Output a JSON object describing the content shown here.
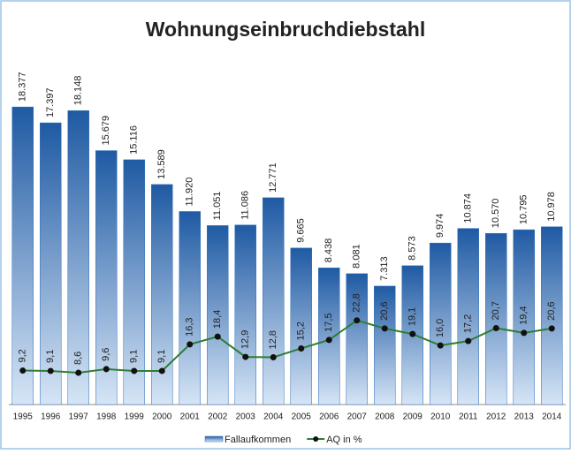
{
  "chart_data": {
    "type": "bar",
    "title": "Wohnungseinbruchdiebstahl",
    "categories": [
      "1995",
      "1996",
      "1997",
      "1998",
      "1999",
      "2000",
      "2001",
      "2002",
      "2003",
      "2004",
      "2005",
      "2006",
      "2007",
      "2008",
      "2009",
      "2010",
      "2011",
      "2012",
      "2013",
      "2014"
    ],
    "series": [
      {
        "name": "Fallaufkommen",
        "type": "bar",
        "color": "#2f6fb8",
        "values": [
          18377,
          17397,
          18148,
          15679,
          15116,
          13589,
          11920,
          11051,
          11086,
          12771,
          9665,
          8438,
          8081,
          7313,
          8573,
          9974,
          10874,
          10570,
          10795,
          10978
        ],
        "value_labels": [
          "18.377",
          "17.397",
          "18.148",
          "15.679",
          "15.116",
          "13.589",
          "11.920",
          "11.051",
          "11.086",
          "12.771",
          "9.665",
          "8.438",
          "8.081",
          "7.313",
          "8.573",
          "9.974",
          "10.874",
          "10.570",
          "10.795",
          "10.978"
        ]
      },
      {
        "name": "AQ in %",
        "type": "line",
        "axis": "y2",
        "color": "#2e7d32",
        "values": [
          9.2,
          9.1,
          8.6,
          9.6,
          9.1,
          9.1,
          16.3,
          18.4,
          12.9,
          12.8,
          15.2,
          17.5,
          22.8,
          20.6,
          19.1,
          16.0,
          17.2,
          20.7,
          19.4,
          20.6
        ],
        "value_labels": [
          "9,2",
          "9,1",
          "8,6",
          "9,6",
          "9,1",
          "9,1",
          "16,3",
          "18,4",
          "12,9",
          "12,8",
          "15,2",
          "17,5",
          "22,8",
          "20,6",
          "19,1",
          "16,0",
          "17,2",
          "20,7",
          "19,4",
          "20,6"
        ]
      }
    ],
    "ylim": [
      0,
      22800
    ],
    "y2lim": [
      0,
      100
    ]
  }
}
